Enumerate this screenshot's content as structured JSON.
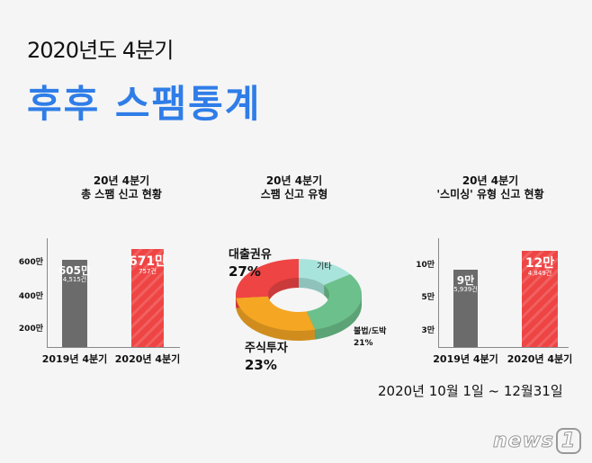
{
  "header": {
    "subtitle": "2020년도 4분기",
    "title": "후후 스팸통계"
  },
  "colors": {
    "accent": "#2f7de8",
    "red": "#ef4444",
    "gray": "#6b6b6b",
    "mint": "#a8e4dc",
    "green": "#6cc08b",
    "orange": "#f5a623"
  },
  "chart_data": [
    {
      "type": "bar",
      "title": [
        "20년 4분기",
        "총 스팸 신고 현황"
      ],
      "categories": [
        "2019년 4분기",
        "2020년 4분기"
      ],
      "values": [
        605,
        671
      ],
      "value_labels": [
        "605만",
        "671만"
      ],
      "sub_labels": [
        "4,515건",
        "757건"
      ],
      "yticks": [
        {
          "v": 200,
          "label": "200만"
        },
        {
          "v": 400,
          "label": "400만"
        },
        {
          "v": 600,
          "label": "600만"
        }
      ],
      "unit": "만"
    },
    {
      "type": "pie",
      "title": [
        "20년 4분기",
        "스팸 신고 유형"
      ],
      "slices": [
        {
          "name": "기타",
          "value": null,
          "color": "#a8e4dc"
        },
        {
          "name": "불법/도박",
          "value": 21,
          "label": "21%",
          "color": "#6cc08b"
        },
        {
          "name": "주식투자",
          "value": 23,
          "label": "23%",
          "color": "#f5a623"
        },
        {
          "name": "대출권유",
          "value": 27,
          "label": "27%",
          "color": "#ef4444"
        }
      ]
    },
    {
      "type": "bar",
      "title": [
        "20년 4분기",
        "'스미싱' 유형 신고 현황"
      ],
      "categories": [
        "2019년 4분기",
        "2020년 4분기"
      ],
      "values": [
        9,
        12
      ],
      "value_labels": [
        "9만",
        "12만"
      ],
      "sub_labels": [
        "5,939건",
        "4,849건"
      ],
      "yticks": [
        {
          "v": 3,
          "label": "3만"
        },
        {
          "v": 5,
          "label": "5만"
        },
        {
          "v": 10,
          "label": "10만"
        }
      ],
      "unit": "만"
    }
  ],
  "footer": {
    "period": "2020년 10월 1일 ~ 12월31일",
    "logo": "news1"
  }
}
